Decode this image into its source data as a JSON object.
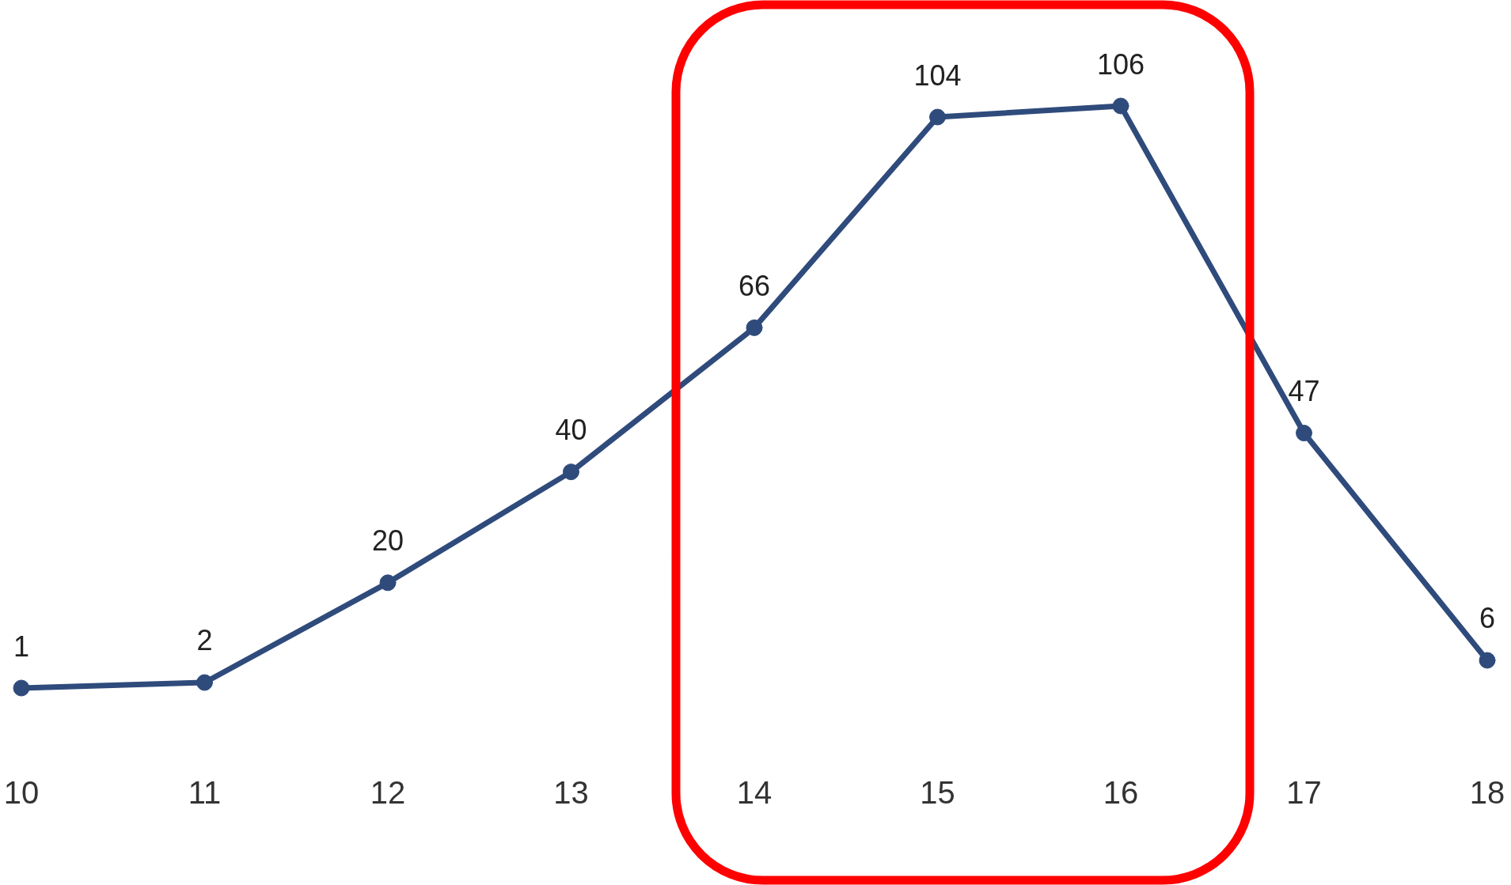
{
  "chart_data": {
    "type": "line",
    "categories": [
      "10",
      "11",
      "12",
      "13",
      "14",
      "15",
      "16",
      "17",
      "18"
    ],
    "values": [
      1,
      2,
      20,
      40,
      66,
      104,
      106,
      47,
      6
    ],
    "color": "#2f4b7c",
    "data_labels": true,
    "marker": "circle",
    "line_style": "solid"
  }
}
